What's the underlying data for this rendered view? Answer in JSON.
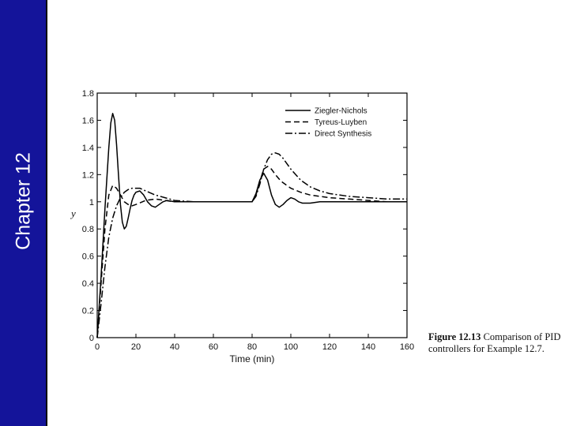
{
  "sidebar": {
    "chapter_label": "Chapter 12",
    "bg_color": "#14149a",
    "text_color": "#ffffff"
  },
  "caption": {
    "figure_label": "Figure 12.13",
    "text": "Comparison of PID controllers for Example 12.7."
  },
  "chart_data": {
    "type": "line",
    "title": "",
    "xlabel": "Time (min)",
    "ylabel": "y",
    "xlim": [
      0,
      160
    ],
    "ylim": [
      0,
      1.8
    ],
    "xticks": [
      0,
      20,
      40,
      60,
      80,
      100,
      120,
      140,
      160
    ],
    "yticks": [
      0,
      0.2,
      0.4,
      0.6,
      0.8,
      1,
      1.2,
      1.4,
      1.6,
      1.8
    ],
    "ytick_labels": [
      "0",
      "0.2",
      "0.4",
      "0.6",
      "0.8",
      "1",
      "1.2",
      "1.4",
      "1.6",
      "1.8"
    ],
    "grid": false,
    "legend_position": "top-right",
    "series": [
      {
        "name": "Ziegler-Nichols",
        "style": "solid",
        "x": [
          0,
          2,
          4,
          6,
          7,
          8,
          9,
          10,
          11,
          12,
          13,
          14,
          15,
          16,
          17,
          18,
          19,
          20,
          22,
          24,
          26,
          28,
          30,
          32,
          34,
          36,
          40,
          50,
          60,
          70,
          80,
          82,
          84,
          86,
          88,
          90,
          92,
          94,
          96,
          98,
          100,
          102,
          104,
          106,
          110,
          115,
          120,
          130,
          140,
          150,
          160
        ],
        "y": [
          0,
          0.45,
          0.95,
          1.4,
          1.58,
          1.65,
          1.6,
          1.42,
          1.2,
          0.98,
          0.85,
          0.8,
          0.82,
          0.88,
          0.95,
          1.01,
          1.05,
          1.07,
          1.08,
          1.05,
          1.0,
          0.97,
          0.96,
          0.98,
          1.0,
          1.01,
          1.0,
          1.0,
          1.0,
          1.0,
          1.0,
          1.06,
          1.16,
          1.21,
          1.16,
          1.05,
          0.98,
          0.96,
          0.98,
          1.01,
          1.03,
          1.02,
          1.0,
          0.99,
          0.99,
          1.0,
          1.0,
          1.0,
          1.0,
          1.0,
          1.0
        ]
      },
      {
        "name": "Tyreus-Luyben",
        "style": "dashed",
        "x": [
          0,
          2,
          4,
          6,
          8,
          10,
          12,
          14,
          16,
          18,
          20,
          25,
          30,
          40,
          50,
          60,
          70,
          80,
          82,
          84,
          86,
          88,
          90,
          92,
          95,
          100,
          105,
          110,
          120,
          130,
          140,
          150,
          160
        ],
        "y": [
          0,
          0.4,
          0.8,
          1.05,
          1.12,
          1.1,
          1.05,
          1.0,
          0.98,
          0.97,
          0.98,
          1.01,
          1.02,
          1.0,
          1.0,
          1.0,
          1.0,
          1.0,
          1.05,
          1.15,
          1.24,
          1.26,
          1.24,
          1.2,
          1.15,
          1.1,
          1.07,
          1.05,
          1.03,
          1.02,
          1.01,
          1.0,
          1.0
        ]
      },
      {
        "name": "Direct Synthesis",
        "style": "dashdot",
        "x": [
          0,
          2,
          4,
          6,
          8,
          10,
          12,
          14,
          16,
          18,
          20,
          22,
          25,
          30,
          35,
          40,
          50,
          60,
          70,
          80,
          82,
          84,
          86,
          88,
          90,
          92,
          94,
          96,
          100,
          105,
          110,
          115,
          120,
          130,
          140,
          150,
          160
        ],
        "y": [
          0,
          0.25,
          0.52,
          0.74,
          0.88,
          0.97,
          1.03,
          1.07,
          1.09,
          1.1,
          1.1,
          1.1,
          1.08,
          1.05,
          1.03,
          1.01,
          1.0,
          1.0,
          1.0,
          1.0,
          1.04,
          1.13,
          1.24,
          1.31,
          1.35,
          1.36,
          1.35,
          1.32,
          1.24,
          1.16,
          1.11,
          1.08,
          1.06,
          1.04,
          1.03,
          1.02,
          1.02
        ]
      }
    ]
  }
}
